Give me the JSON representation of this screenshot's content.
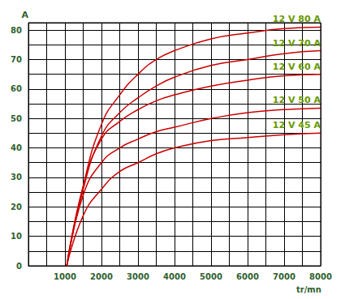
{
  "chart_data": {
    "type": "line",
    "y_label": "A",
    "x_label": "tr/mn",
    "x": [
      1050,
      1500,
      2000,
      2500,
      3000,
      3500,
      4000,
      5000,
      6000,
      7000,
      8000
    ],
    "series": [
      {
        "name": "12 V 80 A",
        "color": "#cc0000",
        "values": [
          0,
          27,
          48,
          58,
          65,
          70,
          73,
          77,
          79,
          80.5,
          81
        ]
      },
      {
        "name": "12 V 70 A",
        "color": "#cc0000",
        "values": [
          0,
          26,
          44,
          52,
          57,
          61,
          64,
          68,
          70,
          72,
          73
        ]
      },
      {
        "name": "12 V 60 A",
        "color": "#cc0000",
        "values": [
          0,
          27,
          43,
          49,
          53,
          56,
          58,
          61,
          63,
          64.5,
          65
        ]
      },
      {
        "name": "12 V 50 A",
        "color": "#cc0000",
        "values": [
          0,
          24,
          35,
          40,
          43,
          45.5,
          47,
          50,
          52,
          53,
          53.5
        ]
      },
      {
        "name": "12 V 45 A",
        "color": "#cc0000",
        "values": [
          0,
          17,
          26,
          32,
          35,
          38,
          40,
          42.5,
          43.5,
          44.5,
          45
        ]
      }
    ],
    "xlim": [
      0,
      8000
    ],
    "xticks": [
      1000,
      2000,
      3000,
      4000,
      5000,
      6000,
      7000,
      8000
    ],
    "ylim": [
      0,
      82.5
    ],
    "yticks": [
      0,
      10,
      20,
      30,
      40,
      50,
      60,
      70,
      80
    ],
    "grid": true
  }
}
